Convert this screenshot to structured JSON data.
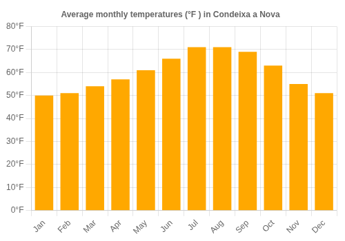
{
  "chart_data": {
    "type": "bar",
    "title": "Average monthly temperatures (°F ) in Condeixa a Nova",
    "categories": [
      "Jan",
      "Feb",
      "Mar",
      "Apr",
      "May",
      "Jun",
      "Jul",
      "Aug",
      "Sep",
      "Oct",
      "Nov",
      "Dec"
    ],
    "values": [
      50,
      51,
      54,
      57,
      61,
      66,
      71,
      71,
      69,
      63,
      55,
      51
    ],
    "color": "#FFA800",
    "ylim": [
      0,
      80
    ],
    "yticks": [
      {
        "value": 0,
        "label": "0°F"
      },
      {
        "value": 10,
        "label": "10°F"
      },
      {
        "value": 20,
        "label": "20°F"
      },
      {
        "value": 30,
        "label": "30°F"
      },
      {
        "value": 40,
        "label": "40°F"
      },
      {
        "value": 50,
        "label": "50°F"
      },
      {
        "value": 60,
        "label": "60°F"
      },
      {
        "value": 70,
        "label": "70°F"
      },
      {
        "value": 80,
        "label": "80°F"
      }
    ],
    "grid": true
  }
}
